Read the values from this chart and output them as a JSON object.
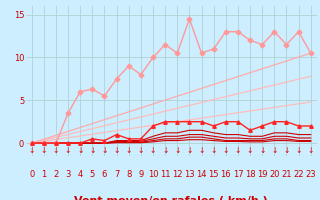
{
  "xlabel": "Vent moyen/en rafales ( km/h )",
  "background_color": "#cceeff",
  "grid_color": "#aacccc",
  "x_ticks": [
    0,
    1,
    2,
    3,
    4,
    5,
    6,
    7,
    8,
    9,
    10,
    11,
    12,
    13,
    14,
    15,
    16,
    17,
    18,
    19,
    20,
    21,
    22,
    23
  ],
  "ylim": [
    -1.5,
    16
  ],
  "xlim": [
    -0.5,
    23.5
  ],
  "y_ticks": [
    0,
    5,
    10,
    15
  ],
  "lines": [
    {
      "x": [
        0,
        23
      ],
      "y": [
        0,
        4.8
      ],
      "color": "#ffbbbb",
      "linewidth": 0.9,
      "marker": null
    },
    {
      "x": [
        0,
        23
      ],
      "y": [
        0,
        7.8
      ],
      "color": "#ffbbbb",
      "linewidth": 0.9,
      "marker": null
    },
    {
      "x": [
        0,
        23
      ],
      "y": [
        0,
        10.5
      ],
      "color": "#ffaaaa",
      "linewidth": 0.9,
      "marker": null
    },
    {
      "x": [
        0,
        1,
        2,
        3,
        4,
        5,
        6,
        7,
        8,
        9,
        10,
        11,
        12,
        13,
        14,
        15,
        16,
        17,
        18,
        19,
        20,
        21,
        22,
        23
      ],
      "y": [
        0,
        0,
        0,
        3.5,
        6.0,
        6.3,
        5.5,
        7.5,
        9.0,
        8.0,
        10.0,
        11.5,
        10.5,
        14.5,
        10.5,
        11.0,
        13.0,
        13.0,
        12.0,
        11.5,
        13.0,
        11.5,
        13.0,
        10.5
      ],
      "color": "#ff9999",
      "linewidth": 1.0,
      "marker": "D",
      "markersize": 2.5
    },
    {
      "x": [
        0,
        1,
        2,
        3,
        4,
        5,
        6,
        7,
        8,
        9,
        10,
        11,
        12,
        13,
        14,
        15,
        16,
        17,
        18,
        19,
        20,
        21,
        22,
        23
      ],
      "y": [
        0,
        0,
        0,
        0,
        0,
        0.5,
        0.3,
        1.0,
        0.5,
        0.5,
        2.0,
        2.5,
        2.5,
        2.5,
        2.5,
        2.0,
        2.5,
        2.5,
        1.5,
        2.0,
        2.5,
        2.5,
        2.0,
        2.0
      ],
      "color": "#ff2222",
      "linewidth": 1.0,
      "marker": "^",
      "markersize": 2.5
    },
    {
      "x": [
        0,
        1,
        2,
        3,
        4,
        5,
        6,
        7,
        8,
        9,
        10,
        11,
        12,
        13,
        14,
        15,
        16,
        17,
        18,
        19,
        20,
        21,
        22,
        23
      ],
      "y": [
        0,
        0,
        0,
        0,
        0,
        0,
        0,
        0.3,
        0.3,
        0.3,
        0.8,
        1.2,
        1.2,
        1.5,
        1.5,
        1.2,
        1.0,
        1.0,
        0.8,
        0.8,
        1.2,
        1.2,
        1.0,
        1.0
      ],
      "color": "#cc0000",
      "linewidth": 0.8,
      "marker": null
    },
    {
      "x": [
        0,
        1,
        2,
        3,
        4,
        5,
        6,
        7,
        8,
        9,
        10,
        11,
        12,
        13,
        14,
        15,
        16,
        17,
        18,
        19,
        20,
        21,
        22,
        23
      ],
      "y": [
        0,
        0,
        0,
        0,
        0,
        0,
        0,
        0.2,
        0.2,
        0.2,
        0.5,
        0.8,
        0.8,
        1.0,
        1.0,
        0.8,
        0.6,
        0.6,
        0.5,
        0.5,
        0.8,
        0.8,
        0.6,
        0.6
      ],
      "color": "#cc0000",
      "linewidth": 0.8,
      "marker": null
    },
    {
      "x": [
        0,
        1,
        2,
        3,
        4,
        5,
        6,
        7,
        8,
        9,
        10,
        11,
        12,
        13,
        14,
        15,
        16,
        17,
        18,
        19,
        20,
        21,
        22,
        23
      ],
      "y": [
        0,
        0,
        0,
        0,
        0,
        0,
        0,
        0.1,
        0.1,
        0.1,
        0.3,
        0.5,
        0.5,
        0.7,
        0.7,
        0.5,
        0.3,
        0.3,
        0.3,
        0.3,
        0.5,
        0.5,
        0.3,
        0.3
      ],
      "color": "#cc0000",
      "linewidth": 0.8,
      "marker": null
    },
    {
      "x": [
        0,
        1,
        2,
        3,
        4,
        5,
        6,
        7,
        8,
        9,
        10,
        11,
        12,
        13,
        14,
        15,
        16,
        17,
        18,
        19,
        20,
        21,
        22,
        23
      ],
      "y": [
        0,
        0,
        0,
        0,
        0,
        0,
        0,
        0.05,
        0.05,
        0.05,
        0.15,
        0.3,
        0.3,
        0.4,
        0.4,
        0.3,
        0.2,
        0.2,
        0.15,
        0.15,
        0.3,
        0.3,
        0.2,
        0.2
      ],
      "color": "#cc0000",
      "linewidth": 0.8,
      "marker": null
    }
  ],
  "arrow_color": "#dd0000",
  "tick_label_color": "#cc0000",
  "axis_label_color": "#cc0000",
  "axis_label_fontsize": 8,
  "tick_fontsize": 6
}
